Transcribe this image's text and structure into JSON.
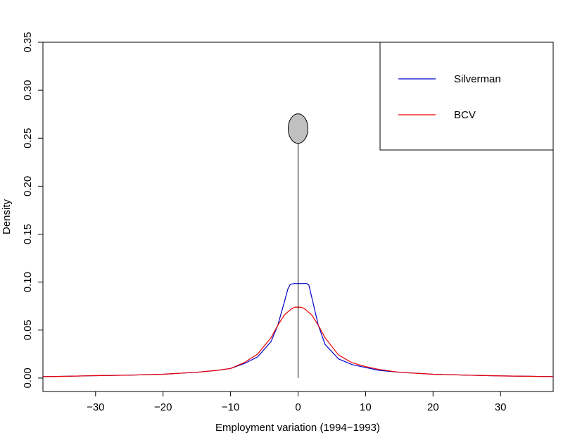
{
  "chart_data": {
    "type": "line",
    "title": "",
    "xlabel": "Employment variation (1994−1993)",
    "ylabel": "Density",
    "xlim": [
      -37.8,
      37.8
    ],
    "ylim": [
      -0.014,
      0.35
    ],
    "xticks": [
      -30,
      -20,
      -10,
      0,
      10,
      20,
      30
    ],
    "xtick_labels": [
      "−30",
      "−20",
      "−10",
      "0",
      "10",
      "20",
      "30"
    ],
    "yticks": [
      0.0,
      0.05,
      0.1,
      0.15,
      0.2,
      0.25,
      0.3,
      0.35
    ],
    "ytick_labels": [
      "0.00",
      "0.05",
      "0.10",
      "0.15",
      "0.20",
      "0.25",
      "0.30",
      "0.35"
    ],
    "grid": false,
    "legend_position": "top-right",
    "series": [
      {
        "name": "Silverman",
        "color": "#0000cc",
        "x": [
          -37.8,
          -35,
          -30,
          -25,
          -20,
          -15,
          -12,
          -10,
          -8,
          -6,
          -4,
          -3,
          -2,
          -1.5,
          -1.2,
          -1,
          -0.5,
          0,
          0.5,
          1,
          1.3,
          1.6,
          2,
          2.5,
          3,
          4,
          6,
          8,
          10,
          12,
          15,
          20,
          25,
          30,
          35,
          37.8
        ],
        "y": [
          0.0015,
          0.0018,
          0.0025,
          0.003,
          0.004,
          0.006,
          0.008,
          0.01,
          0.015,
          0.022,
          0.038,
          0.055,
          0.08,
          0.093,
          0.097,
          0.098,
          0.0985,
          0.0985,
          0.0985,
          0.0985,
          0.0985,
          0.097,
          0.085,
          0.07,
          0.055,
          0.035,
          0.02,
          0.014,
          0.011,
          0.008,
          0.006,
          0.004,
          0.003,
          0.0022,
          0.0018,
          0.0015
        ]
      },
      {
        "name": "BCV",
        "color": "#ee0000",
        "x": [
          -37.8,
          -35,
          -30,
          -25,
          -20,
          -15,
          -12,
          -10,
          -8,
          -6,
          -4,
          -3,
          -2,
          -1,
          -0.5,
          0,
          0.5,
          1,
          2,
          3,
          4,
          6,
          8,
          10,
          12,
          15,
          20,
          25,
          30,
          35,
          37.8
        ],
        "y": [
          0.0015,
          0.0018,
          0.0025,
          0.003,
          0.004,
          0.006,
          0.008,
          0.01,
          0.016,
          0.025,
          0.042,
          0.055,
          0.066,
          0.072,
          0.0738,
          0.074,
          0.0738,
          0.072,
          0.066,
          0.055,
          0.042,
          0.024,
          0.016,
          0.012,
          0.009,
          0.006,
          0.004,
          0.003,
          0.0022,
          0.0018,
          0.0015
        ]
      }
    ],
    "annotations": [
      {
        "type": "vertical-line-with-ellipse",
        "x": 0,
        "y_from": 0.0,
        "y_to": 0.26,
        "fill": "#c0c0c0"
      }
    ]
  }
}
